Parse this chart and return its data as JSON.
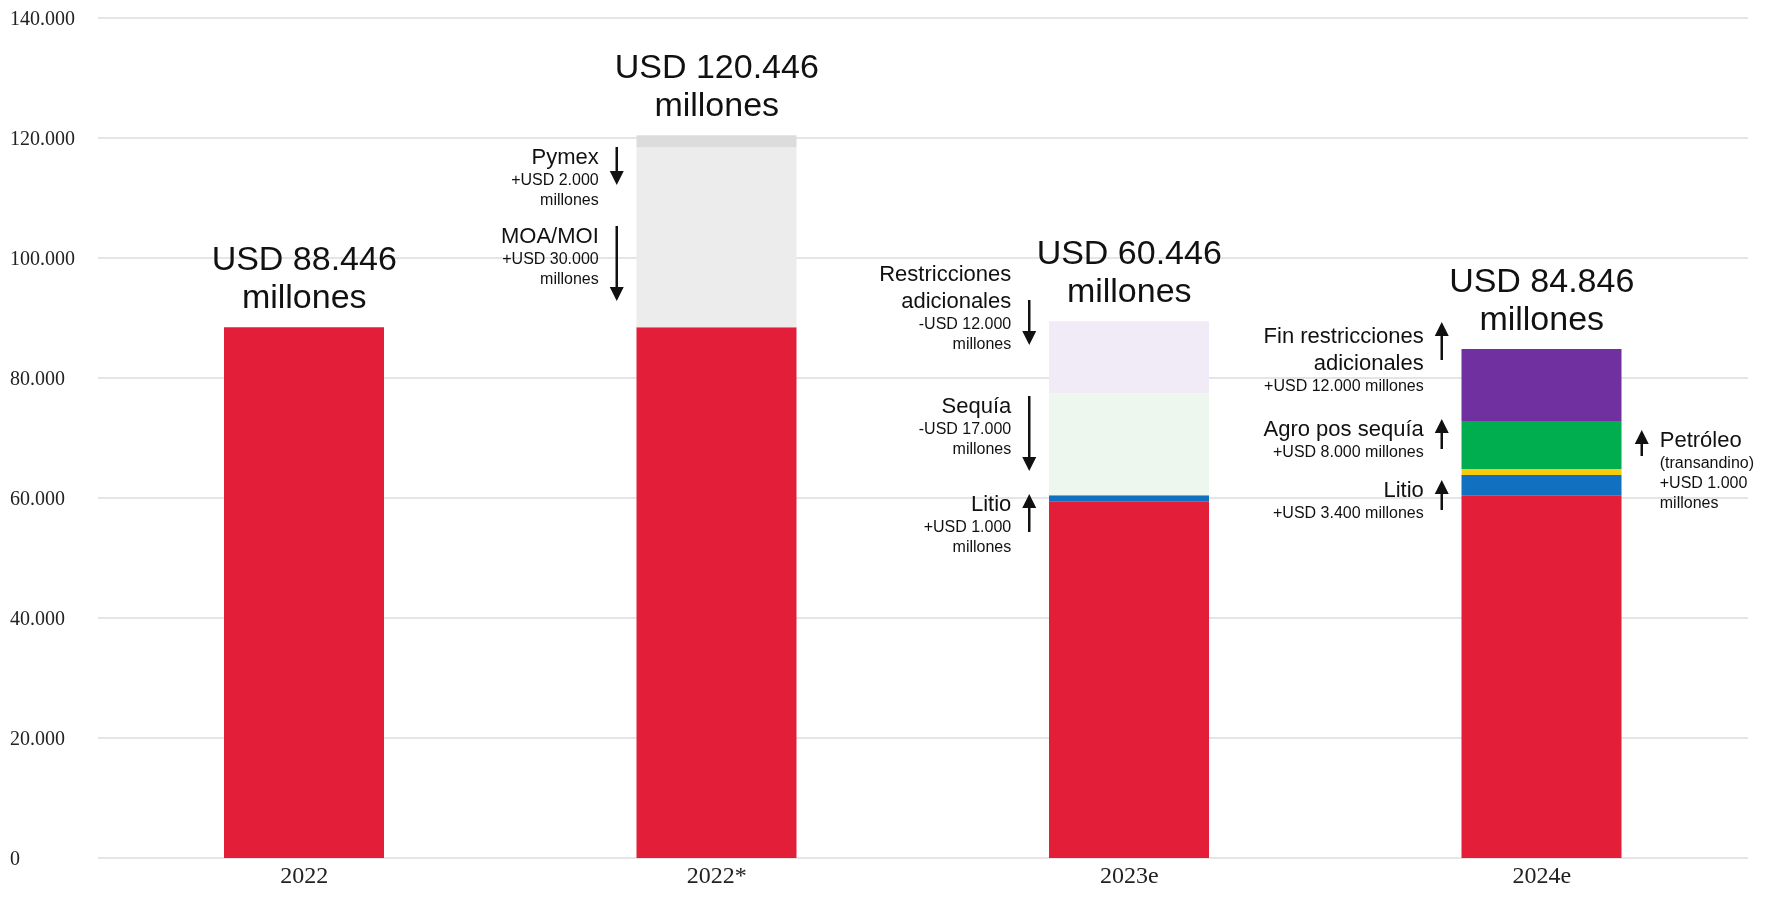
{
  "chart_data": {
    "type": "bar",
    "stacked": true,
    "categories": [
      "2022",
      "2022*",
      "2023e",
      "2024e"
    ],
    "series": [
      {
        "color": "#e31e38",
        "values": [
          88446,
          88446,
          59446,
          60446
        ]
      },
      {
        "color": "#1270c0",
        "values": [
          null,
          null,
          1000,
          3400
        ]
      },
      {
        "color": "#f9cb0c",
        "values": [
          null,
          null,
          null,
          1000
        ]
      },
      {
        "color": "#00ae50",
        "values": [
          null,
          null,
          null,
          8000
        ]
      },
      {
        "color": "#7030a0",
        "values": [
          null,
          null,
          null,
          12000
        ]
      },
      {
        "color": "#ececec",
        "values": [
          null,
          30000,
          null,
          null
        ]
      },
      {
        "color": "#dcdcdc",
        "values": [
          null,
          2000,
          null,
          null
        ]
      },
      {
        "color": "#eef7ee",
        "values": [
          null,
          null,
          17000,
          null
        ]
      },
      {
        "color": "#f1ebf8",
        "values": [
          null,
          null,
          12000,
          null
        ]
      }
    ],
    "ylim": [
      0,
      140000
    ],
    "yticks": [
      {
        "value": 0,
        "label": "0"
      },
      {
        "value": 20000,
        "label": "20.000"
      },
      {
        "value": 40000,
        "label": "40.000"
      },
      {
        "value": 60000,
        "label": "60.000"
      },
      {
        "value": 80000,
        "label": "80.000"
      },
      {
        "value": 100000,
        "label": "100.000"
      },
      {
        "value": 120000,
        "label": "120.000"
      },
      {
        "value": 140000,
        "label": "140.000"
      }
    ],
    "grid": "y",
    "annotations": [
      {
        "text": "USD 88.446\nmillones",
        "x": "2022",
        "y": 88446
      },
      {
        "text": "USD 120.446\nmillones",
        "x": "2022*",
        "y": 120446
      },
      {
        "text": "USD 60.446\nmillones",
        "x": "2023e",
        "y": 89446
      },
      {
        "text": "USD 84.846\nmillones",
        "x": "2024e",
        "y": 84846
      },
      "Pymex\n+USD 2.000\nmillones",
      "MOA/MOI\n+USD 30.000\nmillones",
      "Restricciones\nadicionales\n-USD 12.000\nmillones",
      "Sequía\n-USD 17.000\nmillones",
      "Litio\n+USD 1.000\nmillones",
      "Fin restricciones\nadicionales\n+USD 12.000 millones",
      "Agro pos sequía\n+USD 8.000 millones",
      "Litio\n+USD 3.400 millones",
      "Petróleo\n(transandino)\n+USD 1.000\nmillones"
    ]
  }
}
